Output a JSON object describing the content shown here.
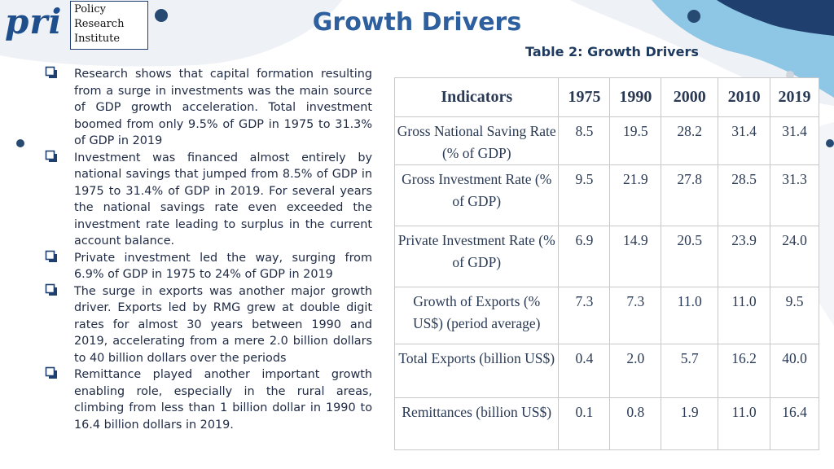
{
  "logo": {
    "mark": "pri",
    "name_lines": [
      "Policy",
      "Research",
      "Institute"
    ]
  },
  "title": "Growth Drivers",
  "table_caption": "Table 2: Growth Drivers",
  "bullets": [
    "Research shows that capital formation resulting from a surge in investments was the main source of GDP growth acceleration. Total investment boomed from only 9.5% of GDP in 1975 to 31.3% of GDP in 2019",
    "Investment was financed almost entirely by national savings that jumped from 8.5% of GDP in 1975 to 31.4% of GDP in 2019. For several years the national savings rate even exceeded the investment rate leading to surplus in the current account balance.",
    "Private investment led the way, surging from 6.9% of GDP in 1975 to 24% of GDP in 2019",
    "The surge in exports was another major growth driver.  Exports led by RMG grew at double digit rates for almost 30 years between 1990 and 2019, accelerating from a mere 2.0 billion dollars to  40 billion dollars over the periods",
    "Remittance played another important growth enabling role, especially in the rural areas, climbing from less than 1 billion dollar in 1990 to 16.4 billion dollars in 2019."
  ],
  "table": {
    "headers": [
      "Indicators",
      "1975",
      "1990",
      "2000",
      "2010",
      "2019"
    ],
    "rows": [
      {
        "indicator": "Gross National Saving Rate (% of GDP)",
        "values": [
          "8.5",
          "19.5",
          "28.2",
          "31.4",
          "31.4"
        ]
      },
      {
        "indicator": "Gross Investment Rate (% of GDP)",
        "values": [
          "9.5",
          "21.9",
          "27.8",
          "28.5",
          "31.3"
        ]
      },
      {
        "indicator": "Private Investment Rate (% of GDP)",
        "values": [
          "6.9",
          "14.9",
          "20.5",
          "23.9",
          "24.0"
        ]
      },
      {
        "indicator": "Growth of Exports (% US$)  (period average)",
        "values": [
          "7.3",
          "7.3",
          "11.0",
          "11.0",
          "9.5"
        ]
      },
      {
        "indicator": "Total Exports (billion US$)",
        "values": [
          "0.4",
          "2.0",
          "5.7",
          "16.2",
          "40.0"
        ]
      },
      {
        "indicator": "Remittances (billion US$)",
        "values": [
          "0.1",
          "0.8",
          "1.9",
          "11.0",
          "16.4"
        ]
      }
    ]
  },
  "colors": {
    "title": "#2e5f9e",
    "accent_dark": "#1f3f6e",
    "blob_light": "#8ec6e6",
    "blob_pale": "#eef1f5",
    "dot": "#274a73"
  }
}
